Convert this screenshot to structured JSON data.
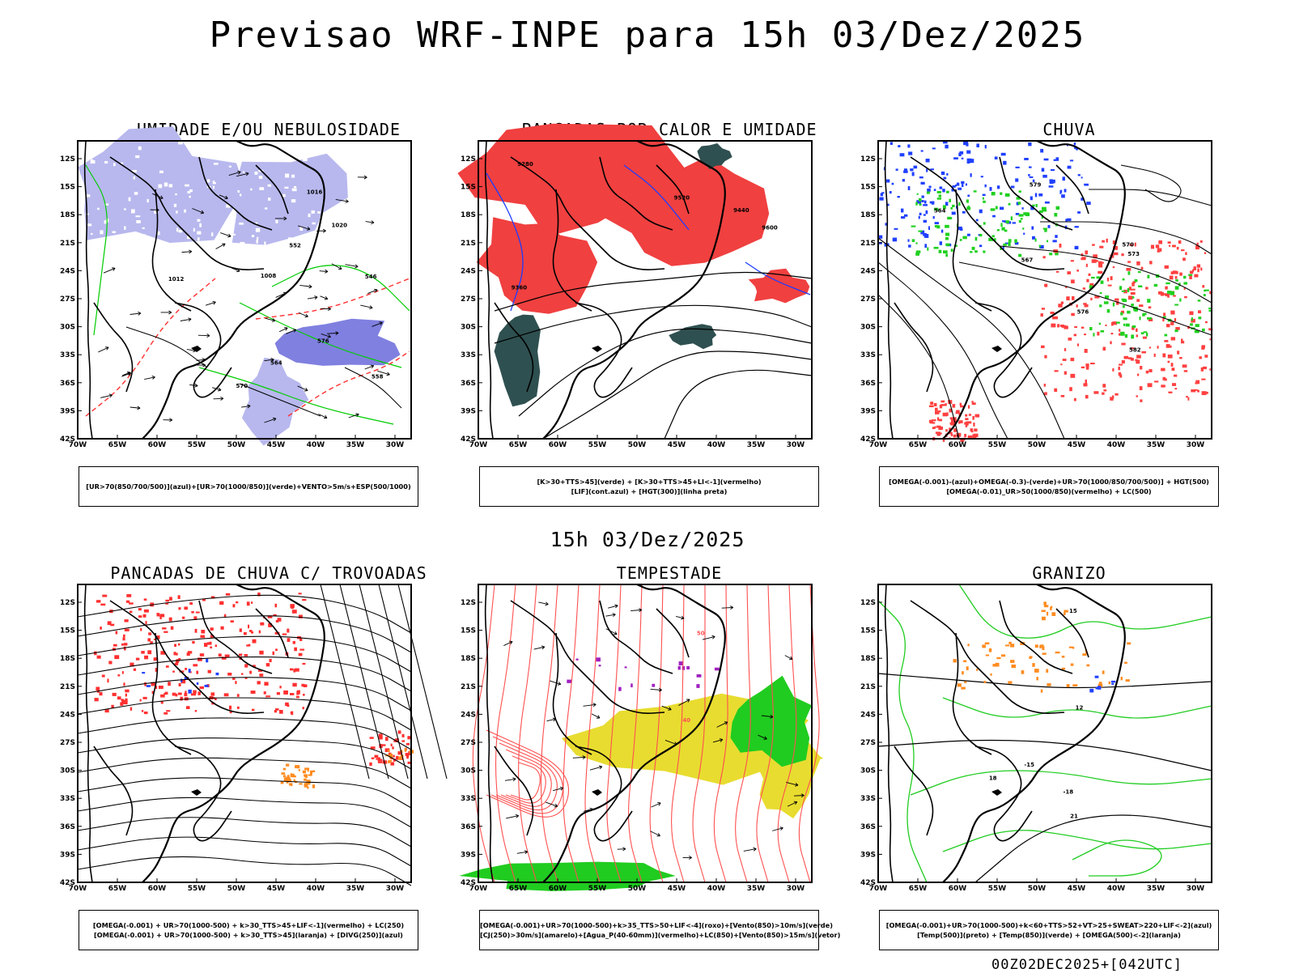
{
  "header": {
    "title": "Previsao WRF-INPE  para 15h 03/Dez/2025",
    "subtitle": "15h 03/Dez/2025",
    "footer": "00Z02DEC2025+[042UTC]"
  },
  "axes": {
    "lat_labels": [
      "12S",
      "15S",
      "18S",
      "21S",
      "24S",
      "27S",
      "30S",
      "33S",
      "36S",
      "39S",
      "42S"
    ],
    "lon_labels": [
      "70W",
      "65W",
      "60W",
      "55W",
      "50W",
      "45W",
      "40W",
      "35W",
      "30W"
    ]
  },
  "panels": [
    {
      "id": "umidade",
      "title": "UMIDADE E/OU NEBULOSIDADE",
      "legend": [
        "[UR>70(850/700/500)](azul)+[UR>70(1000/850)](verde)+VENTO>5m/s+ESP(500/1000)"
      ],
      "colors": {
        "fill1": "#b8b8ee",
        "fill2": "#8080e0",
        "line1": "#00cc00",
        "line2": "#ff3030"
      },
      "contour_labels": [
        "1012",
        "1008",
        "1016",
        "1020",
        "576",
        "570",
        "564",
        "558",
        "552",
        "546"
      ]
    },
    {
      "id": "pancadas-calor",
      "title": "PANCADAS POR CALOR E UMIDADE",
      "legend": [
        "[K>30+TTS>45](verde) + [K>30+TTS>45+LI<-1](vermelho)",
        "[LIF](cont.azul) + [HGT(300)](linha preta)"
      ],
      "colors": {
        "fill1": "#f04040",
        "fill2": "#2f5050",
        "line1": "#1e3cff"
      },
      "contour_labels": [
        "9600",
        "9520",
        "9440",
        "9360",
        "9280"
      ]
    },
    {
      "id": "chuva",
      "title": "CHUVA",
      "legend": [
        "[OMEGA(-0.001)-(azul)+OMEGA(-0.3)-(verde)+UR>70(1000/850/700/500)] + HGT(500)",
        "[OMEGA(-0.01)_UR>50(1000/850)(vermelho) + LC(500)"
      ],
      "colors": {
        "fill1": "#ff4040",
        "fill2": "#20d020",
        "fill3": "#2040ff"
      },
      "contour_labels": [
        "582",
        "579",
        "576",
        "573",
        "570",
        "567",
        "564"
      ]
    },
    {
      "id": "pancadas-trovoadas",
      "title": "PANCADAS DE CHUVA C/ TROVOADAS",
      "legend": [
        "[OMEGA(-0.001) + UR>70(1000-500) + k>30_TTS>45+LIF<-1](vermelho) + LC(250)",
        "[OMEGA(-0.001) + UR>70(1000-500) + k>30_TTS>45](laranja) + [DIVG(250)](azul)"
      ],
      "colors": {
        "fill1": "#ff3030",
        "fill2": "#ff8c20",
        "fill3": "#2040ff"
      },
      "contour_labels": []
    },
    {
      "id": "tempestade",
      "title": "TEMPESTADE",
      "legend": [
        "[OMEGA(-0.001)+UR>70(1000-500)+k>35_TTS>50+LIF<-4](roxo)+[Vento(850)>10m/s](verde)",
        "[CJ(250)>30m/s](amarelo)+[Agua_P(40-60mm)](vermelho)+LC(850)+[Vento(850)>15m/s](vetor)"
      ],
      "colors": {
        "fill1": "#e8dc30",
        "fill2": "#20cc20",
        "line1": "#ff5050",
        "fill3": "#a020c0"
      },
      "contour_labels": [
        "40",
        "50"
      ]
    },
    {
      "id": "granizo",
      "title": "GRANIZO",
      "legend": [
        "[OMEGA(-0.001)+UR>70(1000-500)+k<60+TTS>52+VT>25+SWEAT>220+LIF<-2](azul)",
        "[Temp(500)](preto) + [Temp(850)](verde) + [OMEGA(500)<-2](laranja)"
      ],
      "colors": {
        "line1": "#20cc20",
        "fill1": "#ff8c20",
        "fill2": "#2040ff"
      },
      "contour_labels": [
        "12",
        "15",
        "18",
        "21",
        "-18",
        "-15"
      ]
    }
  ]
}
